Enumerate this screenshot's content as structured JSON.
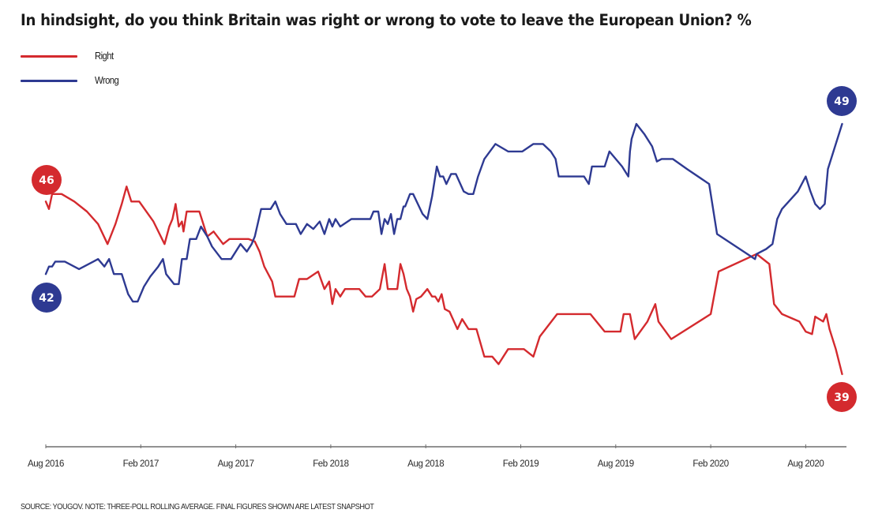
{
  "chart_data": {
    "type": "line",
    "title": "In hindsight, do you think Britain was right or wrong to vote to leave the European Union? %",
    "xlabel": "",
    "ylabel": "%",
    "x_unit": "months since Aug 2016",
    "xlim": [
      0,
      49.8
    ],
    "ylim": [
      33,
      55
    ],
    "grid": false,
    "legend": {
      "placement": "top-left",
      "entries": [
        "Right",
        "Wrong"
      ]
    },
    "x_ticks": [
      {
        "label": "Aug 2016",
        "month": 0
      },
      {
        "label": "Feb 2017",
        "month": 6
      },
      {
        "label": "Aug 2017",
        "month": 12
      },
      {
        "label": "Feb 2018",
        "month": 18
      },
      {
        "label": "Aug 2018",
        "month": 24
      },
      {
        "label": "Feb 2019",
        "month": 30
      },
      {
        "label": "Aug 2019",
        "month": 36
      },
      {
        "label": "Feb 2020",
        "month": 42
      },
      {
        "label": "Aug 2020",
        "month": 48
      }
    ],
    "series": [
      {
        "name": "Right",
        "color": "#d42a2e",
        "start_label": "46",
        "end_label": "39",
        "points": [
          [
            0.0,
            45.9
          ],
          [
            0.2,
            45.6
          ],
          [
            0.4,
            46.2
          ],
          [
            1.0,
            46.2
          ],
          [
            1.8,
            45.9
          ],
          [
            2.6,
            45.5
          ],
          [
            3.3,
            45.0
          ],
          [
            3.9,
            44.2
          ],
          [
            4.4,
            45.0
          ],
          [
            4.8,
            45.8
          ],
          [
            5.1,
            46.5
          ],
          [
            5.4,
            45.9
          ],
          [
            5.9,
            45.9
          ],
          [
            6.8,
            45.1
          ],
          [
            7.5,
            44.2
          ],
          [
            7.8,
            44.9
          ],
          [
            8.0,
            45.2
          ],
          [
            8.2,
            45.8
          ],
          [
            8.4,
            44.9
          ],
          [
            8.6,
            45.1
          ],
          [
            8.7,
            44.7
          ],
          [
            8.9,
            45.5
          ],
          [
            9.7,
            45.5
          ],
          [
            10.2,
            44.5
          ],
          [
            10.6,
            44.7
          ],
          [
            11.2,
            44.2
          ],
          [
            11.6,
            44.4
          ],
          [
            12.8,
            44.4
          ],
          [
            13.2,
            44.3
          ],
          [
            13.5,
            43.9
          ],
          [
            13.8,
            43.3
          ],
          [
            14.3,
            42.7
          ],
          [
            14.5,
            42.1
          ],
          [
            15.7,
            42.1
          ],
          [
            16.0,
            42.8
          ],
          [
            16.5,
            42.8
          ],
          [
            17.2,
            43.1
          ],
          [
            17.6,
            42.4
          ],
          [
            17.9,
            42.7
          ],
          [
            18.1,
            41.8
          ],
          [
            18.3,
            42.4
          ],
          [
            18.6,
            42.1
          ],
          [
            18.9,
            42.4
          ],
          [
            19.8,
            42.4
          ],
          [
            20.2,
            42.1
          ],
          [
            20.6,
            42.1
          ],
          [
            21.1,
            42.4
          ],
          [
            21.4,
            43.4
          ],
          [
            21.6,
            42.4
          ],
          [
            22.2,
            42.4
          ],
          [
            22.4,
            43.4
          ],
          [
            22.6,
            43.0
          ],
          [
            22.8,
            42.4
          ],
          [
            23.0,
            42.1
          ],
          [
            23.2,
            41.5
          ],
          [
            23.4,
            42.0
          ],
          [
            23.7,
            42.1
          ],
          [
            24.1,
            42.4
          ],
          [
            24.4,
            42.1
          ],
          [
            24.6,
            42.1
          ],
          [
            24.8,
            41.9
          ],
          [
            25.0,
            42.2
          ],
          [
            25.2,
            41.6
          ],
          [
            25.5,
            41.5
          ],
          [
            26.0,
            40.8
          ],
          [
            26.3,
            41.2
          ],
          [
            26.7,
            40.8
          ],
          [
            27.2,
            40.8
          ],
          [
            27.7,
            39.7
          ],
          [
            28.2,
            39.7
          ],
          [
            28.6,
            39.4
          ],
          [
            29.2,
            40.0
          ],
          [
            30.2,
            40.0
          ],
          [
            30.8,
            39.7
          ],
          [
            31.2,
            40.5
          ],
          [
            32.3,
            41.4
          ],
          [
            34.4,
            41.4
          ],
          [
            35.3,
            40.7
          ],
          [
            36.3,
            40.7
          ],
          [
            36.5,
            41.4
          ],
          [
            36.9,
            41.4
          ],
          [
            37.2,
            40.4
          ],
          [
            38.0,
            41.1
          ],
          [
            38.5,
            41.8
          ],
          [
            38.7,
            41.1
          ],
          [
            39.5,
            40.4
          ],
          [
            42.0,
            41.4
          ],
          [
            42.5,
            43.1
          ],
          [
            44.9,
            43.8
          ],
          [
            45.7,
            43.4
          ],
          [
            46.0,
            41.8
          ],
          [
            46.5,
            41.4
          ],
          [
            47.6,
            41.1
          ],
          [
            48.0,
            40.7
          ],
          [
            48.4,
            40.6
          ],
          [
            48.6,
            41.3
          ],
          [
            49.1,
            41.1
          ],
          [
            49.3,
            41.4
          ],
          [
            49.5,
            40.8
          ],
          [
            49.9,
            40.0
          ],
          [
            50.3,
            39.0
          ]
        ]
      },
      {
        "name": "Wrong",
        "color": "#2e3a92",
        "start_label": "42",
        "end_label": "49",
        "points": [
          [
            0.0,
            43.0
          ],
          [
            0.2,
            43.3
          ],
          [
            0.4,
            43.3
          ],
          [
            0.6,
            43.5
          ],
          [
            1.2,
            43.5
          ],
          [
            2.1,
            43.2
          ],
          [
            3.0,
            43.5
          ],
          [
            3.3,
            43.6
          ],
          [
            3.7,
            43.3
          ],
          [
            4.0,
            43.6
          ],
          [
            4.3,
            43.0
          ],
          [
            4.8,
            43.0
          ],
          [
            5.2,
            42.2
          ],
          [
            5.5,
            41.9
          ],
          [
            5.8,
            41.9
          ],
          [
            6.2,
            42.5
          ],
          [
            6.6,
            42.9
          ],
          [
            7.1,
            43.3
          ],
          [
            7.4,
            43.6
          ],
          [
            7.6,
            43.0
          ],
          [
            8.1,
            42.6
          ],
          [
            8.4,
            42.6
          ],
          [
            8.6,
            43.6
          ],
          [
            8.9,
            43.6
          ],
          [
            9.1,
            44.4
          ],
          [
            9.5,
            44.4
          ],
          [
            9.8,
            44.9
          ],
          [
            10.2,
            44.5
          ],
          [
            10.5,
            44.1
          ],
          [
            11.1,
            43.6
          ],
          [
            11.7,
            43.6
          ],
          [
            12.3,
            44.2
          ],
          [
            12.7,
            43.9
          ],
          [
            13.0,
            44.2
          ],
          [
            13.2,
            44.5
          ],
          [
            13.6,
            45.6
          ],
          [
            14.2,
            45.6
          ],
          [
            14.5,
            45.9
          ],
          [
            14.8,
            45.4
          ],
          [
            15.2,
            45.0
          ],
          [
            15.8,
            45.0
          ],
          [
            16.1,
            44.6
          ],
          [
            16.5,
            45.0
          ],
          [
            16.9,
            44.8
          ],
          [
            17.3,
            45.1
          ],
          [
            17.6,
            44.6
          ],
          [
            17.9,
            45.2
          ],
          [
            18.1,
            44.9
          ],
          [
            18.3,
            45.2
          ],
          [
            18.6,
            44.9
          ],
          [
            19.3,
            45.2
          ],
          [
            20.5,
            45.2
          ],
          [
            20.7,
            45.5
          ],
          [
            21.0,
            45.5
          ],
          [
            21.2,
            44.6
          ],
          [
            21.4,
            45.2
          ],
          [
            21.6,
            45.0
          ],
          [
            21.8,
            45.4
          ],
          [
            22.0,
            44.6
          ],
          [
            22.2,
            45.2
          ],
          [
            22.4,
            45.2
          ],
          [
            22.6,
            45.7
          ],
          [
            22.7,
            45.7
          ],
          [
            23.0,
            46.2
          ],
          [
            23.2,
            46.2
          ],
          [
            23.8,
            45.4
          ],
          [
            24.1,
            45.2
          ],
          [
            24.4,
            46.1
          ],
          [
            24.7,
            47.3
          ],
          [
            24.9,
            46.9
          ],
          [
            25.1,
            46.9
          ],
          [
            25.3,
            46.6
          ],
          [
            25.6,
            47.0
          ],
          [
            25.9,
            47.0
          ],
          [
            26.4,
            46.3
          ],
          [
            26.7,
            46.2
          ],
          [
            27.0,
            46.2
          ],
          [
            27.3,
            46.9
          ],
          [
            27.7,
            47.6
          ],
          [
            28.4,
            48.2
          ],
          [
            29.2,
            47.9
          ],
          [
            30.1,
            47.9
          ],
          [
            30.8,
            48.2
          ],
          [
            31.4,
            48.2
          ],
          [
            31.9,
            47.9
          ],
          [
            32.2,
            47.6
          ],
          [
            32.4,
            46.9
          ],
          [
            34.0,
            46.9
          ],
          [
            34.3,
            46.6
          ],
          [
            34.5,
            47.3
          ],
          [
            35.3,
            47.3
          ],
          [
            35.6,
            47.9
          ],
          [
            36.4,
            47.3
          ],
          [
            36.8,
            46.9
          ],
          [
            36.9,
            47.9
          ],
          [
            37.0,
            48.4
          ],
          [
            37.3,
            49.0
          ],
          [
            37.8,
            48.6
          ],
          [
            38.3,
            48.1
          ],
          [
            38.6,
            47.5
          ],
          [
            38.9,
            47.6
          ],
          [
            39.6,
            47.6
          ],
          [
            40.5,
            47.2
          ],
          [
            41.9,
            46.6
          ],
          [
            42.4,
            44.6
          ],
          [
            44.8,
            43.6
          ],
          [
            44.9,
            43.8
          ],
          [
            45.5,
            44.0
          ],
          [
            45.9,
            44.2
          ],
          [
            46.2,
            45.2
          ],
          [
            46.5,
            45.6
          ],
          [
            47.5,
            46.3
          ],
          [
            48.0,
            46.9
          ],
          [
            48.3,
            46.3
          ],
          [
            48.6,
            45.8
          ],
          [
            48.9,
            45.6
          ],
          [
            49.2,
            45.8
          ],
          [
            49.4,
            47.2
          ],
          [
            50.3,
            49.0
          ]
        ]
      }
    ]
  },
  "legend": {
    "right_label": "Right",
    "wrong_label": "Wrong"
  },
  "colors": {
    "right": "#d42a2e",
    "wrong": "#2e3a92",
    "axis": "#6e6e6e"
  },
  "footer": {
    "source": "SOURCE: YOUGOV. NOTE: THREE-POLL ROLLING AVERAGE. FINAL FIGURES SHOWN ARE LATEST SNAPSHOT"
  }
}
